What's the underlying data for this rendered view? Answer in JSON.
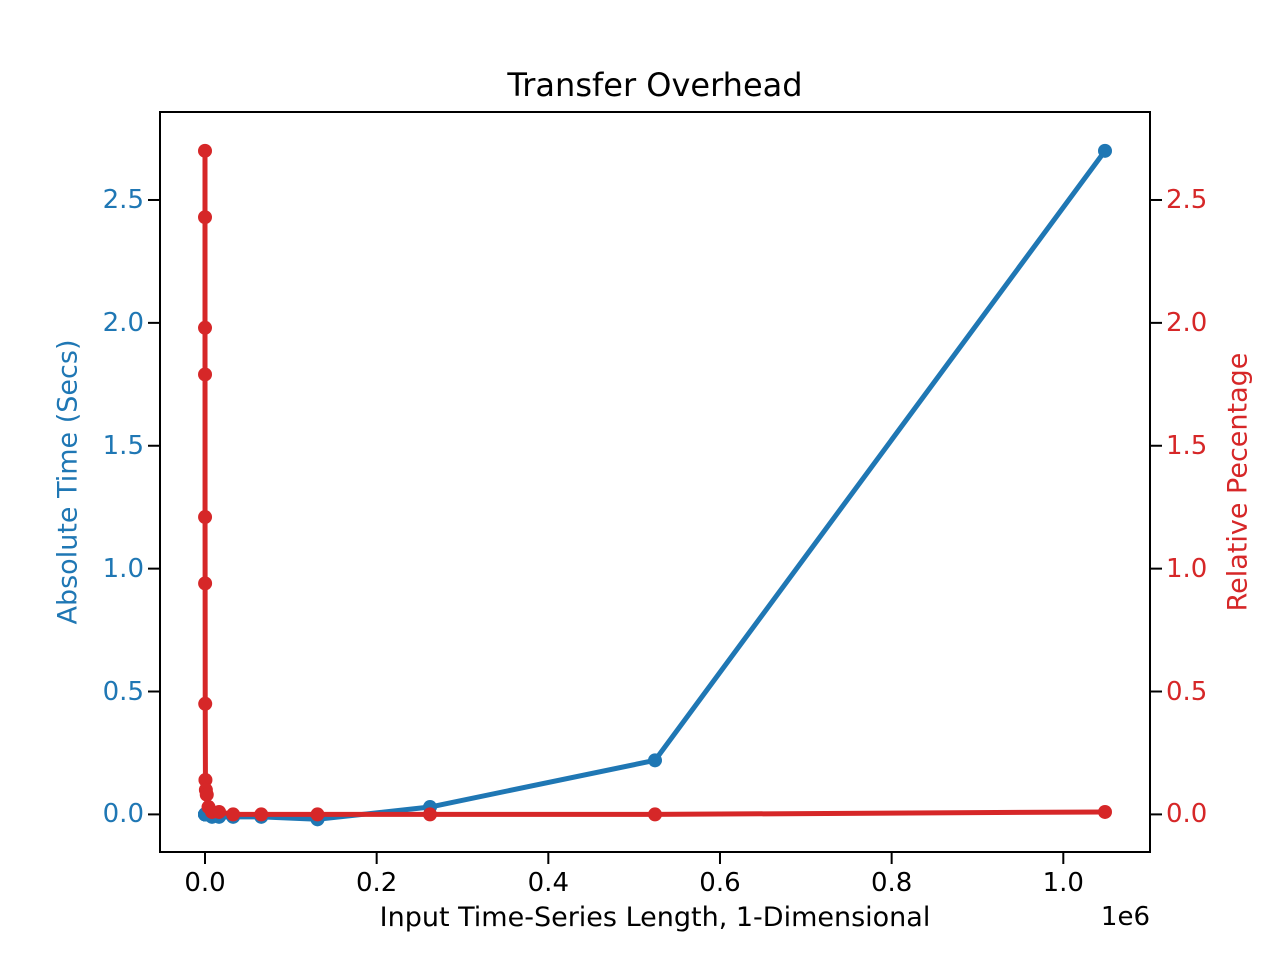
{
  "figure": {
    "background": "#ffffff"
  },
  "chart_data": {
    "type": "line",
    "title": "Transfer Overhead",
    "xlabel": "Input Time-Series Length, 1-Dimensional",
    "x_offset_label": "1e6",
    "ylabel_left": "Absolute Time (Secs)",
    "ylabel_right": "Relative Pecentage",
    "grid": false,
    "legend": null,
    "x": [
      4,
      8,
      16,
      32,
      64,
      128,
      256,
      512,
      1024,
      2048,
      4096,
      8192,
      16384,
      32768,
      65536,
      131072,
      262144,
      524288,
      1048576
    ],
    "series": [
      {
        "name": "Absolute Time (Secs)",
        "axis": "left",
        "color": "#1f77b4",
        "values": [
          0.0,
          0.0,
          0.0,
          0.0,
          0.0,
          0.0,
          0.0,
          0.0,
          0.0,
          0.0,
          0.0,
          -0.01,
          -0.01,
          -0.01,
          -0.01,
          -0.02,
          0.03,
          0.22,
          2.7
        ]
      },
      {
        "name": "Relative Pecentage",
        "axis": "right",
        "color": "#d62728",
        "values": [
          2.7,
          2.43,
          1.98,
          1.79,
          1.21,
          0.94,
          0.45,
          0.14,
          0.1,
          0.08,
          0.03,
          0.01,
          0.01,
          0.0,
          0.0,
          0.0,
          0.0,
          0.0,
          0.01
        ]
      }
    ],
    "xlim": [
      -52428.8,
      1101004.8
    ],
    "ylim_left": [
      -0.153,
      2.858
    ],
    "ylim_right": [
      -0.153,
      2.858
    ],
    "xticks": {
      "values": [
        0,
        200000,
        400000,
        600000,
        800000,
        1000000
      ],
      "labels": [
        "0.0",
        "0.2",
        "0.4",
        "0.6",
        "0.8",
        "1.0"
      ]
    },
    "yticks_left": {
      "values": [
        0.0,
        0.5,
        1.0,
        1.5,
        2.0,
        2.5
      ],
      "labels": [
        "0.0",
        "0.5",
        "1.0",
        "1.5",
        "2.0",
        "2.5"
      ]
    },
    "yticks_right": {
      "values": [
        0.0,
        0.5,
        1.0,
        1.5,
        2.0,
        2.5
      ],
      "labels": [
        "0.0",
        "0.5",
        "1.0",
        "1.5",
        "2.0",
        "2.5"
      ]
    },
    "colors": {
      "left_axis": "#1f77b4",
      "right_axis": "#d62728",
      "spine": "#000000",
      "x_tick_label": "#000000",
      "title": "#000000"
    }
  }
}
